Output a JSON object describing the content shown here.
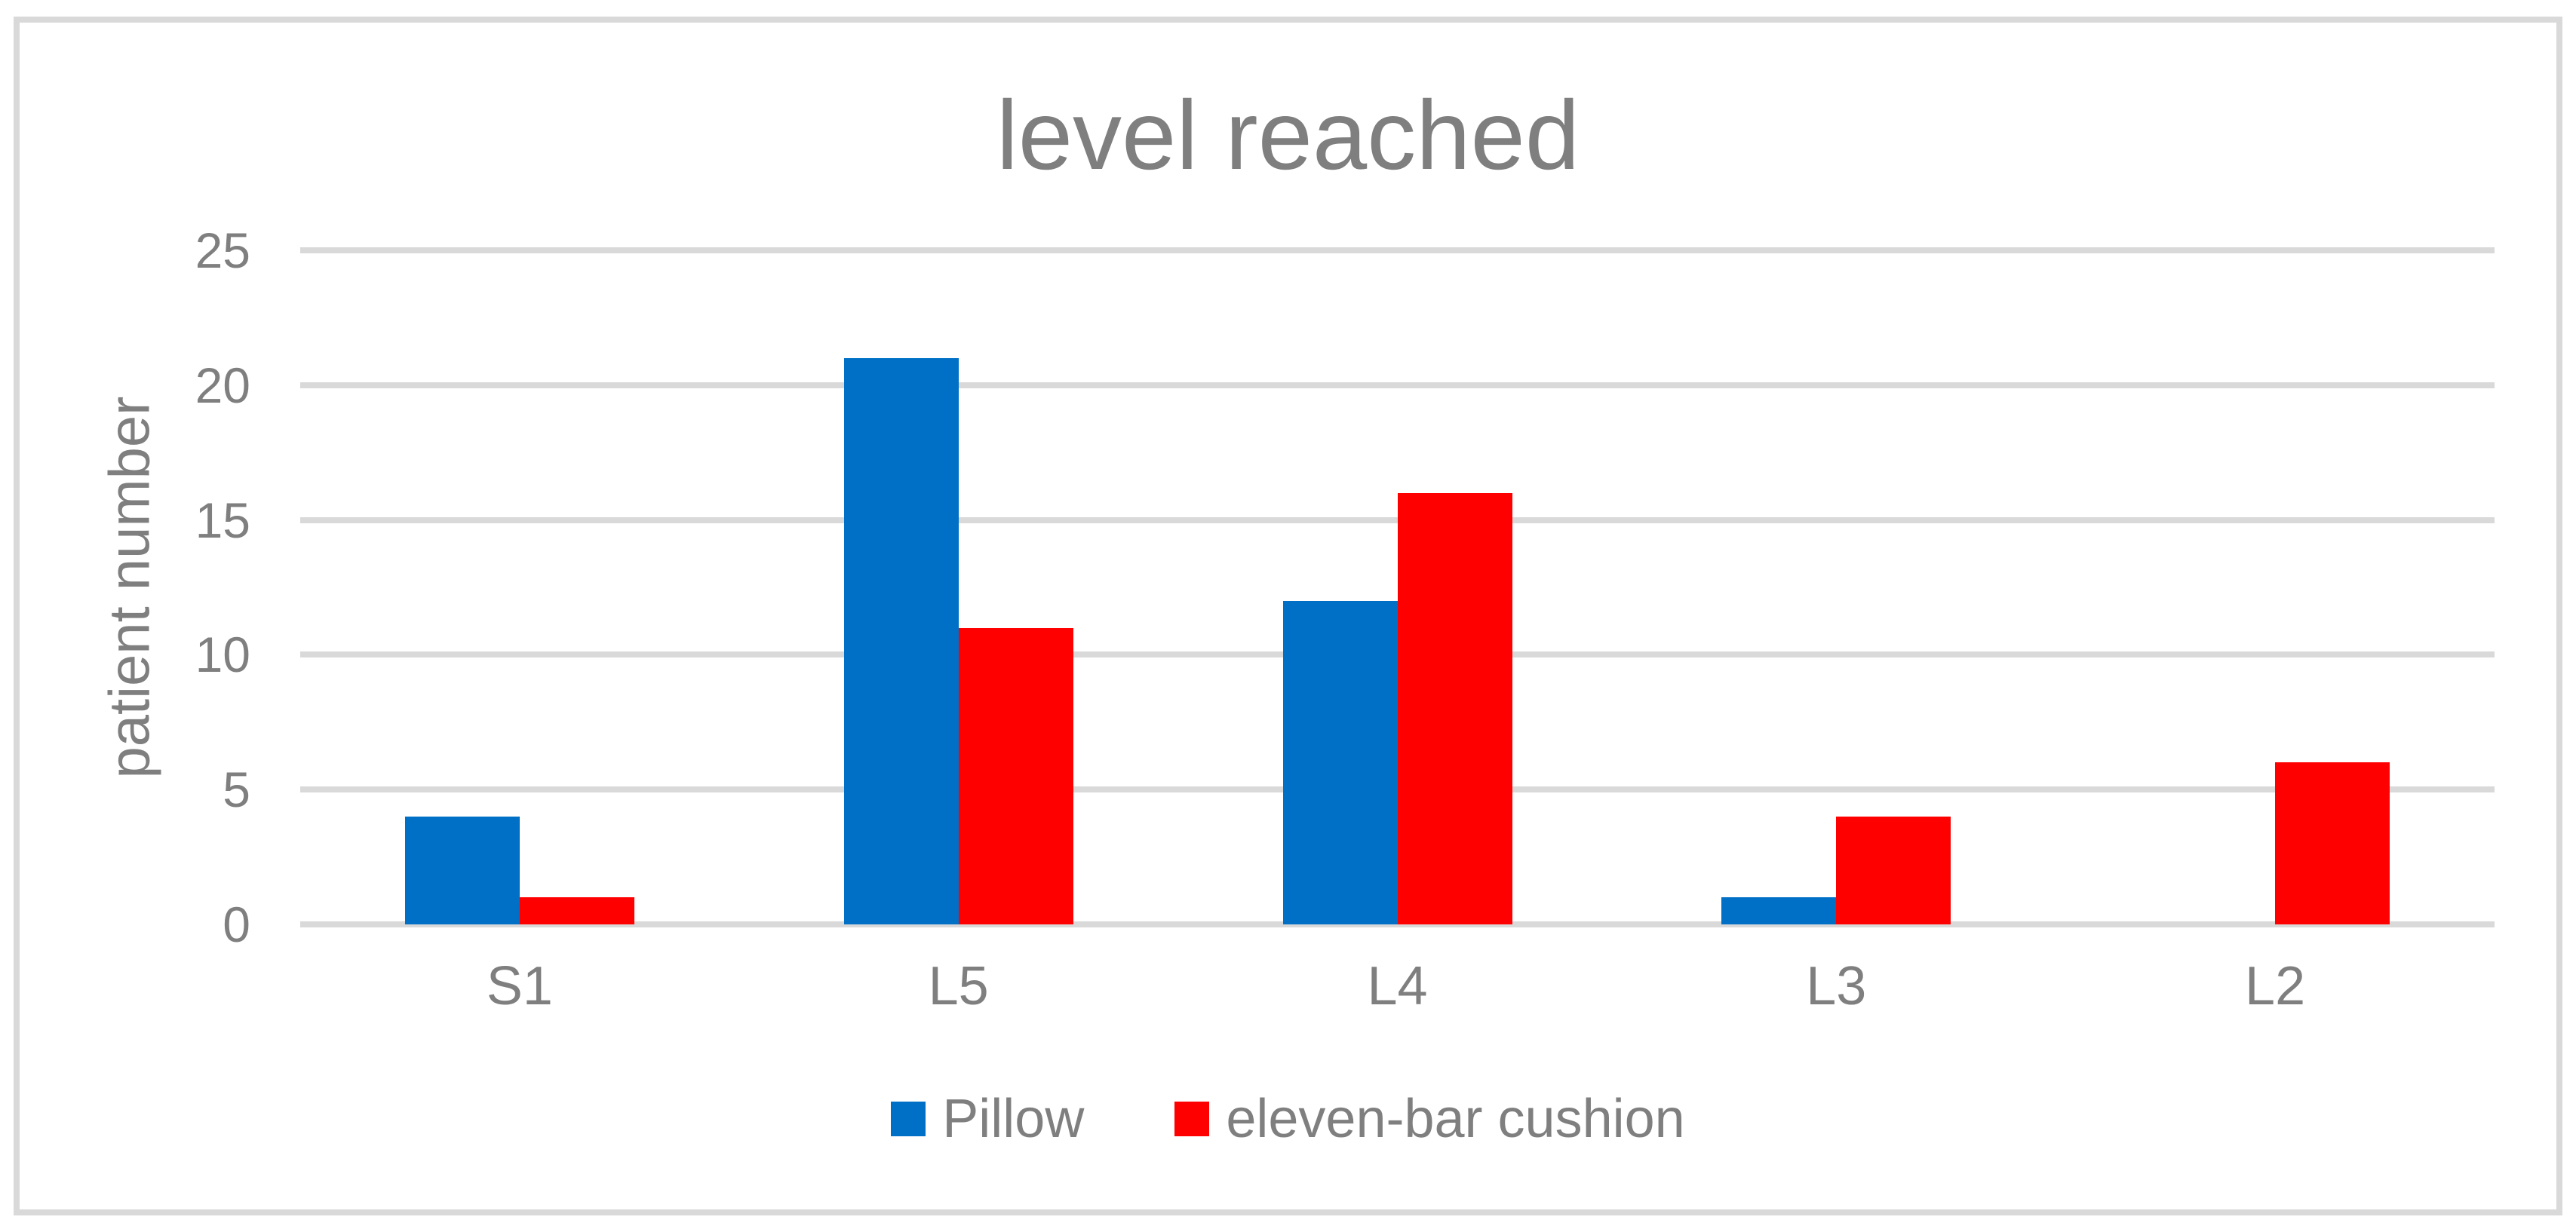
{
  "figure": {
    "background_color": "#ffffff",
    "frame_border_color": "#d9d9d9"
  },
  "chart_data": {
    "type": "bar",
    "title": "level reached",
    "xlabel": "",
    "ylabel": "patient number",
    "categories": [
      "S1",
      "L5",
      "L4",
      "L3",
      "L2"
    ],
    "series": [
      {
        "name": "Pillow",
        "color": "#0070c6",
        "values": [
          4,
          21,
          12,
          1,
          0
        ]
      },
      {
        "name": "eleven-bar cushion",
        "color": "#ff0000",
        "values": [
          1,
          11,
          16,
          4,
          6
        ]
      }
    ],
    "ylim": [
      0,
      25
    ],
    "yticks": [
      0,
      5,
      10,
      15,
      20,
      25
    ],
    "grid": true,
    "grid_color": "#d9d9d9",
    "text_color": "#7f7f7f",
    "legend_position": "bottom"
  }
}
